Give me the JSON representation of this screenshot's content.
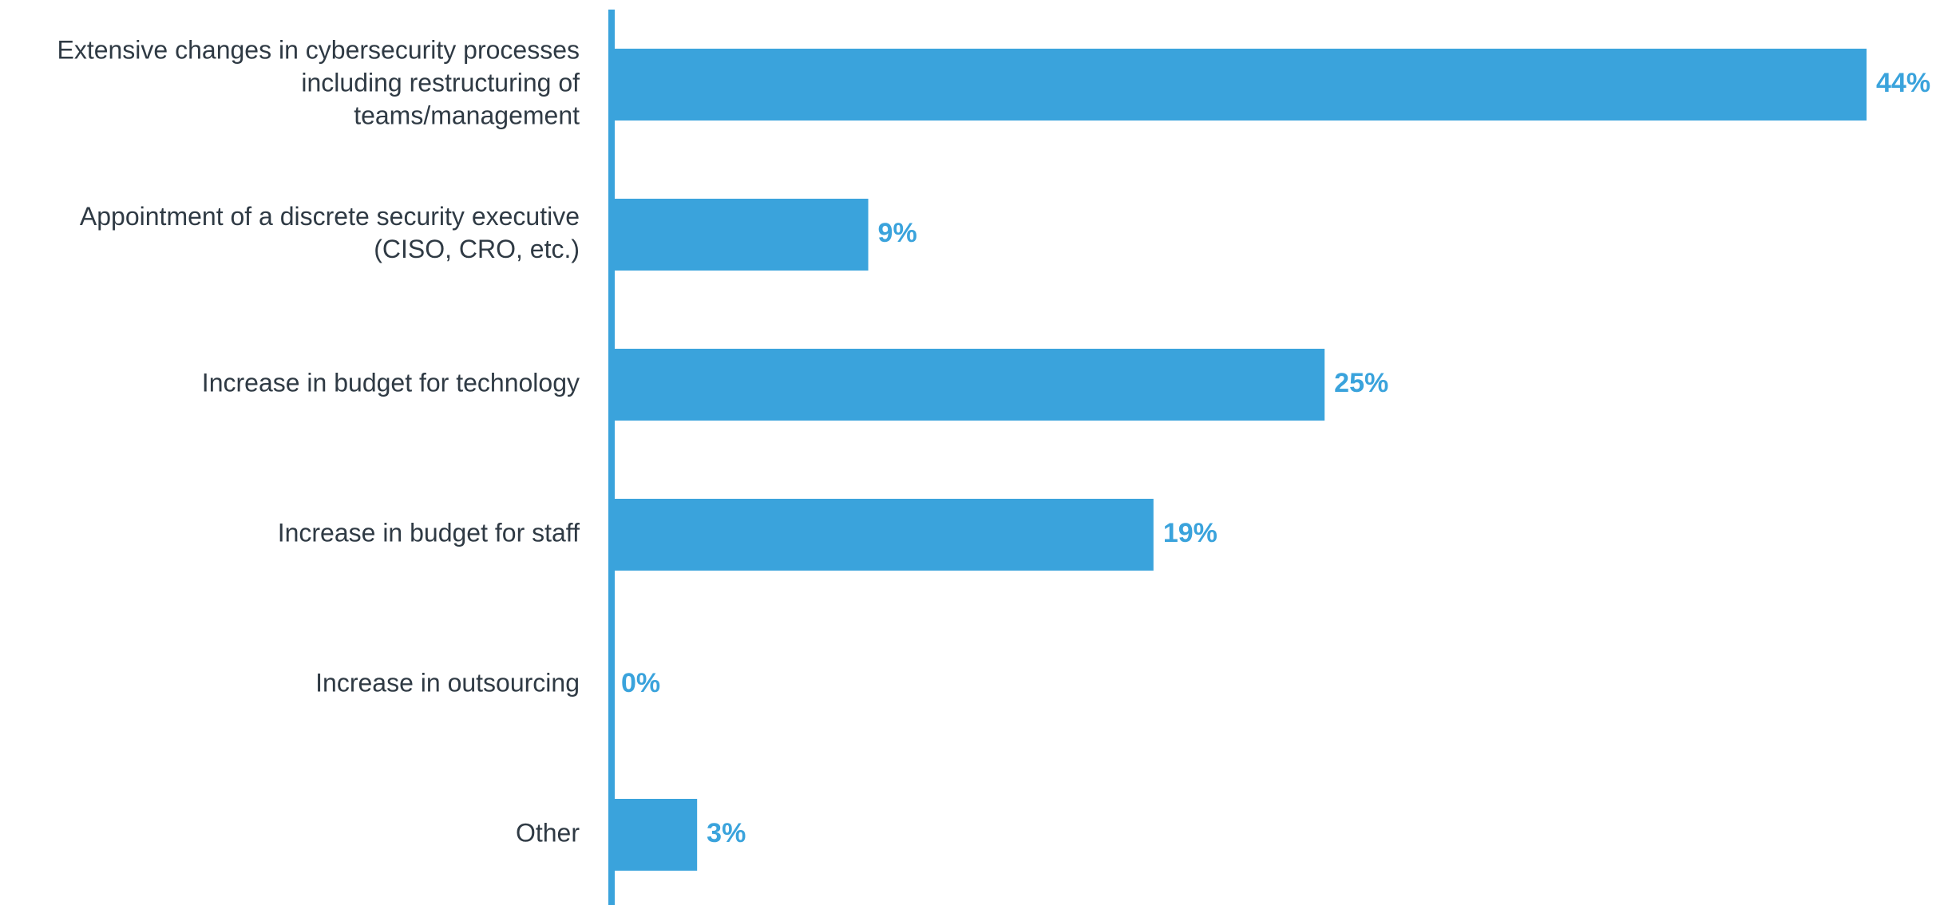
{
  "chart_data": {
    "type": "bar",
    "orientation": "horizontal",
    "categories": [
      [
        "Extensive changes in cybersecurity processes",
        "including restructuring of",
        "teams/management"
      ],
      [
        "Appointment of a discrete security executive",
        "(CISO, CRO, etc.)"
      ],
      [
        "Increase in budget for technology"
      ],
      [
        "Increase in budget for staff"
      ],
      [
        "Increase in outsourcing"
      ],
      [
        "Other"
      ]
    ],
    "values": [
      44,
      9,
      25,
      19,
      0,
      3
    ],
    "value_labels": [
      "44%",
      "9%",
      "25%",
      "19%",
      "0%",
      "3%"
    ],
    "unit": "%",
    "xlim": [
      0,
      44
    ],
    "title": "",
    "xlabel": "",
    "ylabel": "",
    "grid": false,
    "legend": "none",
    "colors": {
      "bar": "#3aa3dc",
      "axis": "#3aa3dc",
      "label_text": "#2f3a44",
      "value_text": "#3aa3dc"
    }
  }
}
